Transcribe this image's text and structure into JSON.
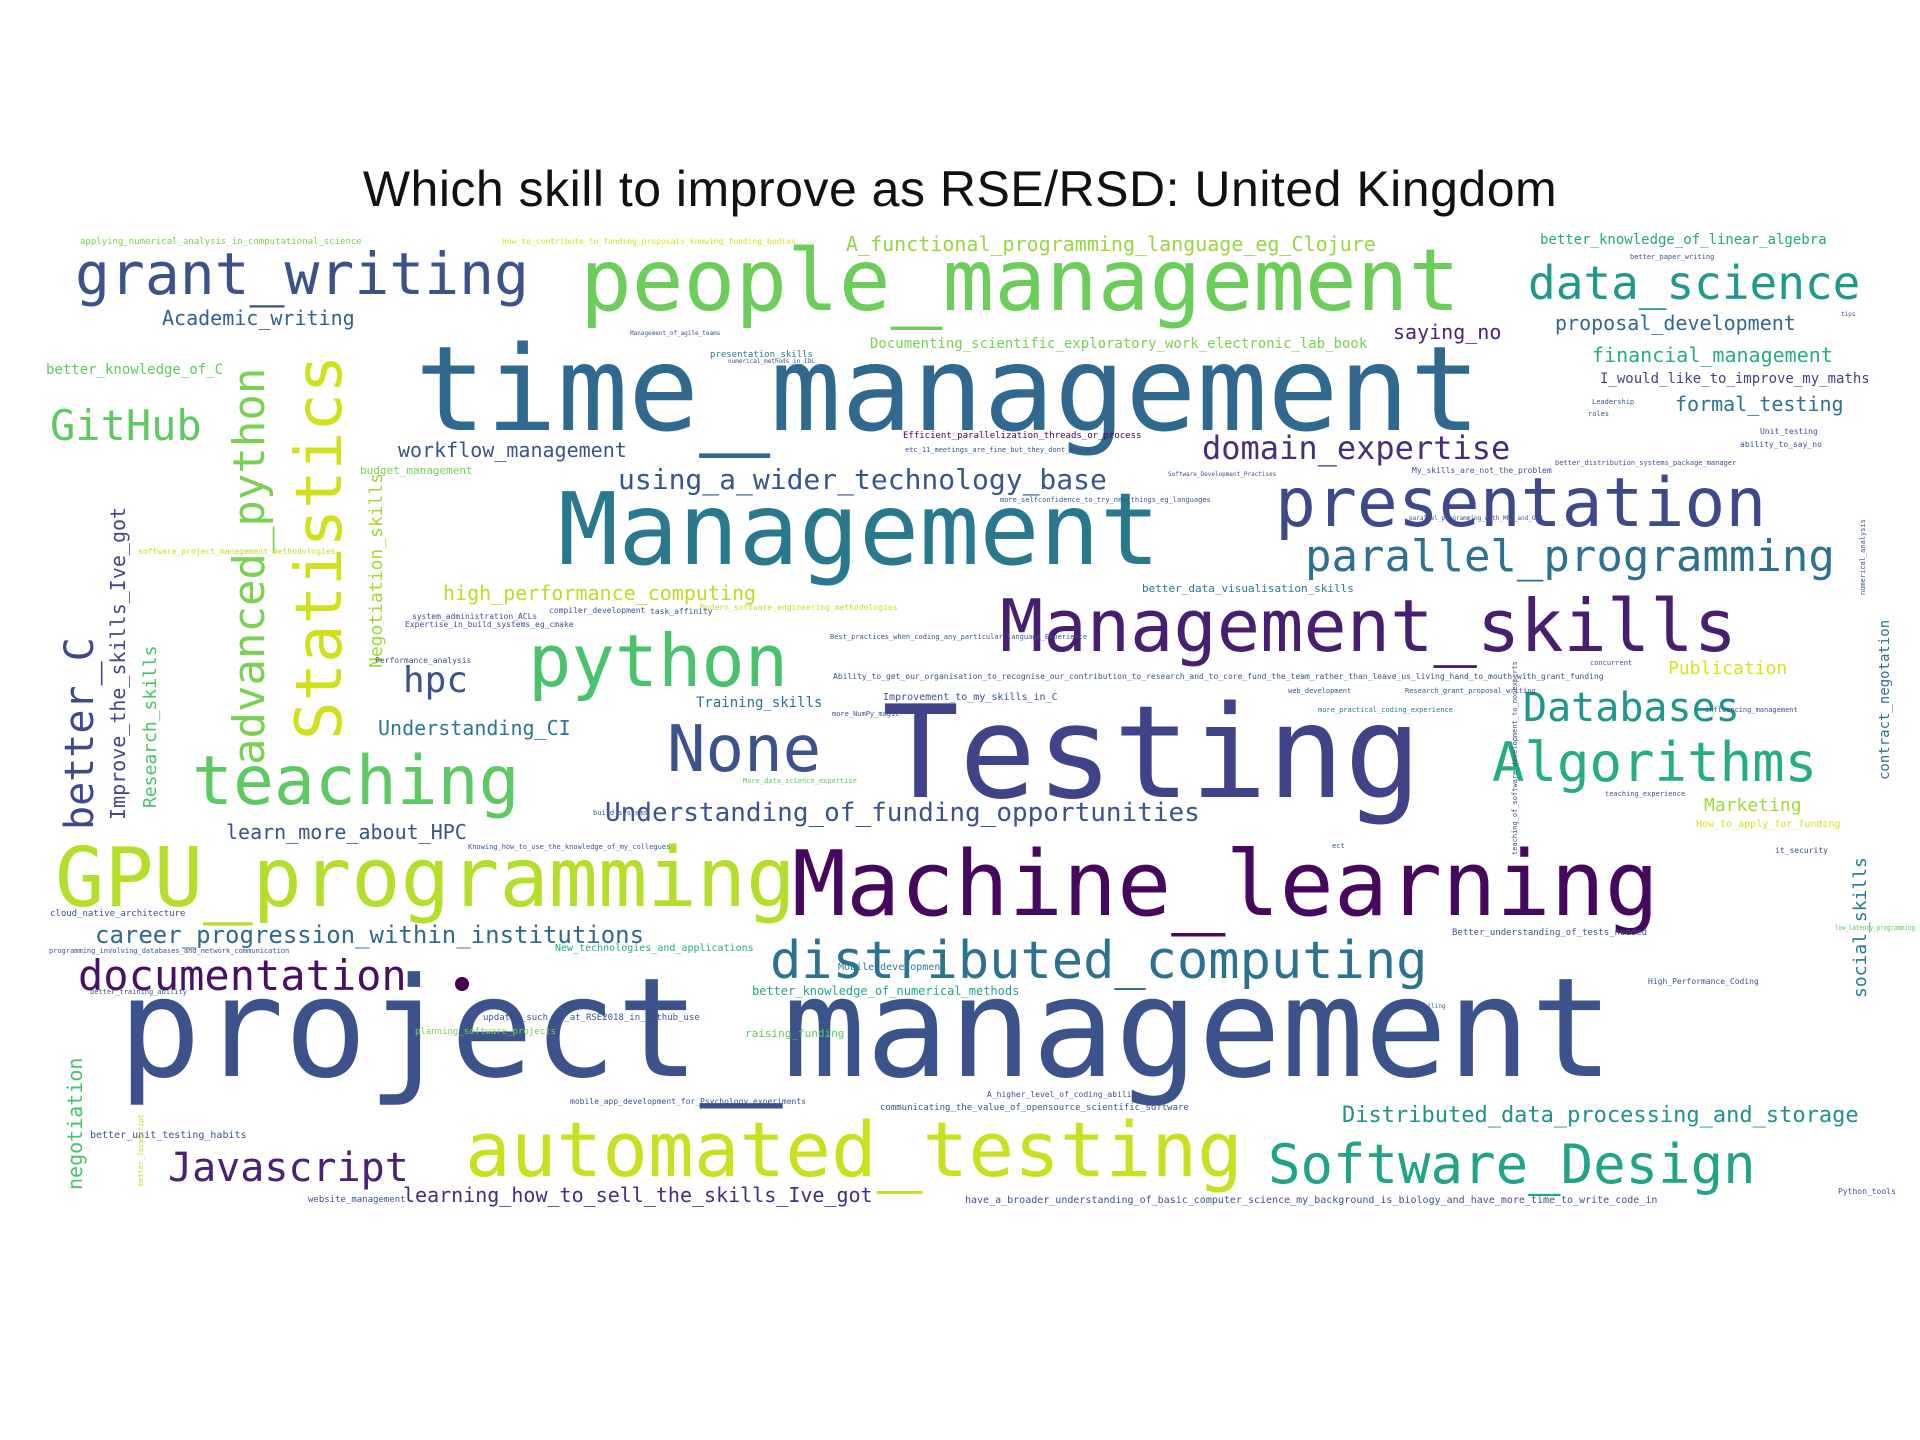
{
  "title": "Which skill to improve as RSE/RSD: United Kingdom",
  "palette": {
    "background": "#ffffff",
    "colormap": "viridis",
    "dark_purple": "#440154",
    "indigo": "#3b528b",
    "teal": "#21918c",
    "green": "#5ec962",
    "yellow": "#bddf26"
  },
  "words": [
    {
      "text": "project_management",
      "color": "#3b528b"
    },
    {
      "text": "time_management",
      "color": "#31688e"
    },
    {
      "text": "Testing",
      "color": "#404387"
    },
    {
      "text": "Management",
      "color": "#2a788e"
    },
    {
      "text": "Machine_learning",
      "color": "#46085c"
    },
    {
      "text": "people_management",
      "color": "#6ccd5a"
    },
    {
      "text": "GPU_programming",
      "color": "#b5de2b"
    },
    {
      "text": "automated_testing",
      "color": "#c8e020"
    },
    {
      "text": "Management_skills",
      "color": "#481f70"
    },
    {
      "text": "presentation",
      "color": "#3e4989"
    },
    {
      "text": "python",
      "color": "#4ac16d"
    },
    {
      "text": "teaching",
      "color": "#5ec962"
    },
    {
      "text": "distributed_computing",
      "color": "#2c728e"
    },
    {
      "text": "grant_writing",
      "color": "#3b528b"
    },
    {
      "text": "Software_Design",
      "color": "#20a386"
    },
    {
      "text": "None",
      "color": "#3b528b"
    },
    {
      "text": "Algorithms",
      "color": "#25ac82"
    },
    {
      "text": "data_science",
      "color": "#1f9a8a"
    },
    {
      "text": "parallel_programming",
      "color": "#2d718e"
    },
    {
      "text": "documentation",
      "color": "#471063"
    },
    {
      "text": "Statistics",
      "color": "#d0e11c"
    },
    {
      "text": "advanced_python",
      "color": "#7ad151"
    },
    {
      "text": "Javascript",
      "color": "#482173"
    },
    {
      "text": "Databases",
      "color": "#1f968b"
    },
    {
      "text": "GitHub",
      "color": "#5ec962"
    },
    {
      "text": "better_C",
      "color": "#3e4989"
    },
    {
      "text": "domain_expertise",
      "color": "#472d7b"
    },
    {
      "text": "hpc",
      "color": "#3b528b"
    },
    {
      "text": "Understanding_of_funding_opportunities",
      "color": "#3b528b"
    },
    {
      "text": "using_a_wider_technology_base",
      "color": "#39568c"
    },
    {
      "text": "career_progression_within_institutions",
      "color": "#31688e"
    },
    {
      "text": "Distributed_data_processing_and_storage",
      "color": "#20928c"
    },
    {
      "text": "learning_how_to_sell_the_skills_Ive_got",
      "color": "#472c7a"
    },
    {
      "text": "learn_more_about_HPC",
      "color": "#3b528b"
    },
    {
      "text": "A_functional_programming_language_eg_Clojure",
      "color": "#95d840"
    },
    {
      "text": "Academic_writing",
      "color": "#35608d"
    },
    {
      "text": "high_performance_computing",
      "color": "#b8de29"
    },
    {
      "text": "Understanding_CI",
      "color": "#2a788e"
    },
    {
      "text": "workflow_management",
      "color": "#3b528b"
    },
    {
      "text": "Improve_the_skills_Ive_got",
      "color": "#3e4a89"
    },
    {
      "text": "Research_skills",
      "color": "#4ac16d"
    },
    {
      "text": "Negotiation_skills",
      "color": "#a0da39"
    },
    {
      "text": "negotiation",
      "color": "#4ac16d"
    },
    {
      "text": "saying_no",
      "color": "#482475"
    },
    {
      "text": "proposal_development",
      "color": "#31688e"
    },
    {
      "text": "financial_management",
      "color": "#27ad81"
    },
    {
      "text": "formal_testing",
      "color": "#2c728e"
    },
    {
      "text": "better_knowledge_of_linear_algebra",
      "color": "#22a785"
    },
    {
      "text": "better_knowledge_of_C",
      "color": "#5ec962"
    },
    {
      "text": "Documenting_scientific_exploratory_work_electronic_lab_book",
      "color": "#7ad151"
    },
    {
      "text": "Marketing",
      "color": "#a0da39"
    },
    {
      "text": "Publication",
      "color": "#d8e219"
    },
    {
      "text": "social_skills",
      "color": "#2a788e"
    },
    {
      "text": "contract_negotation",
      "color": "#2d708e"
    },
    {
      "text": "better_knowledge_of_numerical_methods",
      "color": "#22a884"
    },
    {
      "text": "I_would_like_to_improve_my_maths",
      "color": "#414487"
    },
    {
      "text": "Training_skills",
      "color": "#2c728e"
    },
    {
      "text": "raising_funding",
      "color": "#5ec962"
    },
    {
      "text": "planning_software_projects",
      "color": "#7ad151"
    },
    {
      "text": "updates_such_as_at_RSE2018_in_Github_use",
      "color": "#3b528b"
    },
    {
      "text": "better_unit_testing_habits",
      "color": "#3b528b"
    },
    {
      "text": "website_management",
      "color": "#3b528b"
    },
    {
      "text": "have_a_broader_understanding_of_basic_computer_science_my_background_is_biology_and_have_more_time_to_write_code_in",
      "color": "#3b528b"
    },
    {
      "text": "cloud_native_architecture",
      "color": "#3b528b"
    },
    {
      "text": "How_to_apply_for_funding",
      "color": "#d8e219"
    },
    {
      "text": "Better_understanding_of_tests_needed",
      "color": "#3b528b"
    },
    {
      "text": "Improvement_to_my_skills_in_C",
      "color": "#3b528b"
    },
    {
      "text": "Efficient_parallelization_threads_or_process",
      "color": "#440154"
    },
    {
      "text": "etc_11_meetings_are_fine_but_they_dont_scale",
      "color": "#3b528b"
    },
    {
      "text": "Ability_to_get_our_organisation_to_recognise_our_contribution_to_research_and_to_core_fund_the_team_rather_than_leave_us_living_hand_to_mouth_with_grant_funding",
      "color": "#3b528b"
    },
    {
      "text": "New_technologies_and_applications",
      "color": "#22a884"
    },
    {
      "text": "Mobile_development",
      "color": "#2a788e"
    },
    {
      "text": "better_data_visualisation_skills",
      "color": "#2a788e"
    },
    {
      "text": "budget_management",
      "color": "#7ad151"
    },
    {
      "text": "mobile_app_development_for_Psychology_experiments",
      "color": "#3b528b"
    },
    {
      "text": "communicating_the_value_of_opensource_scientific_software",
      "color": "#3b528b"
    },
    {
      "text": "applying_numerical_analysis_in_computational_science",
      "color": "#7ad151"
    },
    {
      "text": "How_to_contribute_to_funding_proposals_knowing_funding_bodies",
      "color": "#d8e219"
    },
    {
      "text": "presentation_skills",
      "color": "#2a788e"
    },
    {
      "text": "better_paper_writing",
      "color": "#3b528b"
    },
    {
      "text": "High_Performance_Coding",
      "color": "#3b528b"
    },
    {
      "text": "teaching_experience",
      "color": "#3b528b"
    },
    {
      "text": "it_security",
      "color": "#3b528b"
    },
    {
      "text": "better_distribution_systems_package_manager",
      "color": "#3b528b"
    },
    {
      "text": "Unit_testing",
      "color": "#3b528b"
    },
    {
      "text": "ability_to_say_no",
      "color": "#3b528b"
    },
    {
      "text": "My_skills_are_not_the_problem",
      "color": "#3b528b"
    },
    {
      "text": "Software_Development_Practises",
      "color": "#3b528b"
    },
    {
      "text": "web_development",
      "color": "#3b528b"
    },
    {
      "text": "more_practical_coding_experience",
      "color": "#2a788e"
    },
    {
      "text": "Research_grant_proposal_writing",
      "color": "#3b528b"
    },
    {
      "text": "A_higher_level_of_coding_ability",
      "color": "#3b528b"
    },
    {
      "text": "more_NumPy_magic",
      "color": "#3b528b"
    },
    {
      "text": "Modern_software_engineering_methodologies",
      "color": "#bddf26"
    },
    {
      "text": "compiler_development",
      "color": "#3b528b"
    },
    {
      "text": "task_affinity",
      "color": "#3b528b"
    },
    {
      "text": "system_administration_ACLs",
      "color": "#3b528b"
    },
    {
      "text": "Expertise_in_build_systems_eg_cmake",
      "color": "#3b528b"
    },
    {
      "text": "Performance_analysis",
      "color": "#3b528b"
    },
    {
      "text": "Knowing_how_to_use_the_knowledge_of_my_collegues",
      "color": "#3b528b"
    },
    {
      "text": "build_systems",
      "color": "#3b528b"
    },
    {
      "text": "programming_involving_databases_and_network_communication",
      "color": "#3b528b"
    },
    {
      "text": "better_training_ability",
      "color": "#3b528b"
    },
    {
      "text": "more_selfconfidence_to_try_new_things_eg_languages",
      "color": "#3b528b"
    },
    {
      "text": "Best_practices_when_coding_any_particular_language_Experience",
      "color": "#3b528b"
    },
    {
      "text": "More_data_science_expertise",
      "color": "#5ec962"
    },
    {
      "text": "low_latency_programming",
      "color": "#5ec962"
    },
    {
      "text": "software_project_management_methodologies",
      "color": "#bddf26"
    },
    {
      "text": "better_JavaScript",
      "color": "#bddf26"
    },
    {
      "text": "data_modelling",
      "color": "#3b528b"
    },
    {
      "text": "Python_tools",
      "color": "#3b528b"
    },
    {
      "text": "tips",
      "color": "#3b528b"
    },
    {
      "text": "Leadership",
      "color": "#3b528b"
    },
    {
      "text": "roles",
      "color": "#3b528b"
    },
    {
      "text": "ect",
      "color": "#3b528b"
    },
    {
      "text": "concurrent",
      "color": "#3b528b"
    },
    {
      "text": "influencing_management",
      "color": "#3b528b"
    },
    {
      "text": "numerical_analysis",
      "color": "#3b528b"
    },
    {
      "text": "teaching_of_software_development_to_nonexperts",
      "color": "#3b528b"
    },
    {
      "text": "Management_of_agile_teams",
      "color": "#3b528b"
    },
    {
      "text": "parallel_programming_with_MPI_and_GPU",
      "color": "#3b528b"
    },
    {
      "text": "numerical_methods_in_IDL",
      "color": "#3b528b"
    },
    {
      "text": "Research",
      "color": "#3b528b"
    }
  ]
}
